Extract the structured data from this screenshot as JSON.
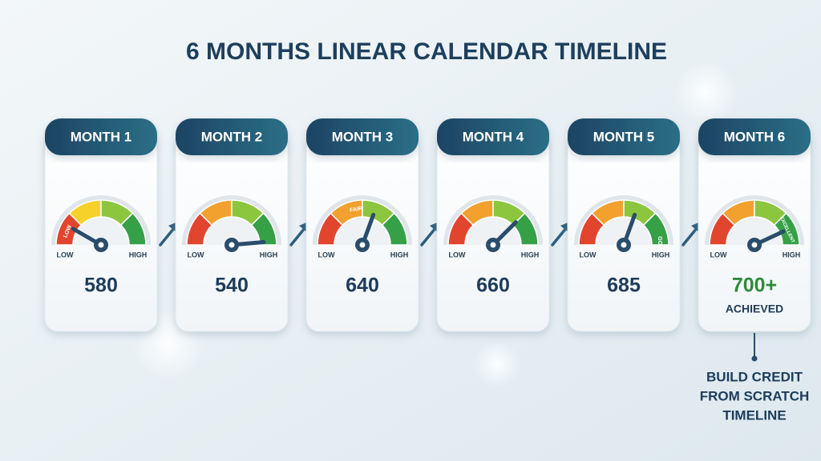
{
  "title": "6 MONTHS LINEAR CALENDAR TIMELINE",
  "months": [
    {
      "label": "MONTH 1",
      "low": "LOW",
      "high": "HIGH",
      "zone": "LOW",
      "score": 580
    },
    {
      "label": "MONTH 2",
      "low": "LOW",
      "high": "HIGH",
      "score": 540
    },
    {
      "label": "MONTH 3",
      "low": "LOW",
      "high": "HIGH",
      "zone": "FAIR",
      "score": 640
    },
    {
      "label": "MONTH 4",
      "low": "LOW",
      "high": "HIGH",
      "score": 660
    },
    {
      "label": "MONTH 5",
      "low": "LOW",
      "high": "HIGH",
      "zone": "GOOD",
      "score": 685
    },
    {
      "label": "MONTH 6",
      "low": "LOW",
      "high": "HIGH",
      "zone": "EXCELLENT",
      "score": "700+",
      "status": "ACHIEVED"
    }
  ],
  "note": {
    "lines": [
      "BUILD CREDIT",
      "FROM SCRATCH",
      "TIMELINE"
    ]
  }
}
